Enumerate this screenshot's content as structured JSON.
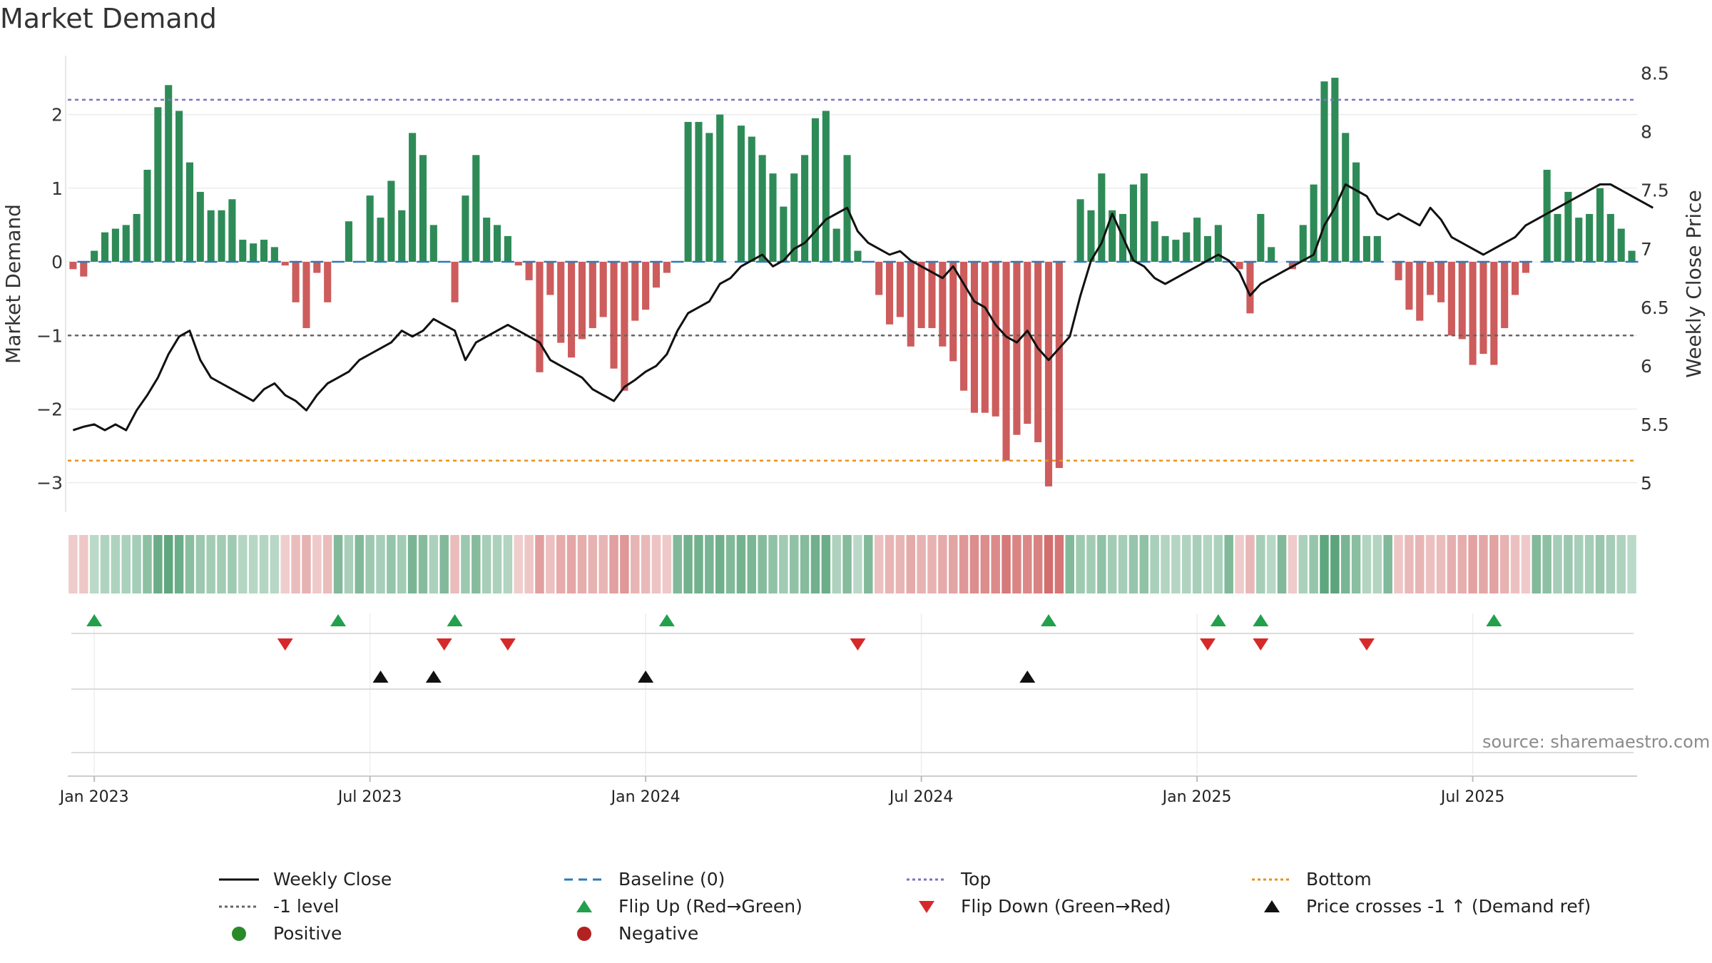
{
  "title": "Market Demand",
  "source": "source: sharemaestro.com",
  "chart_data": {
    "type": "bar+line",
    "title": "Market Demand",
    "ylabel_left": "Market Demand",
    "ylabel_right": "Weekly Close Price",
    "ylim_left": [
      -3.4,
      2.8
    ],
    "ylim_right": [
      4.75,
      8.65
    ],
    "yticks_left": [
      -3,
      -2,
      -1,
      0,
      1,
      2
    ],
    "ytick_labels_left": [
      "−3",
      "−2",
      "−1",
      "0",
      "1",
      "2"
    ],
    "yticks_right": [
      5,
      5.5,
      6,
      6.5,
      7,
      7.5,
      8,
      8.5
    ],
    "ytick_labels_right": [
      "5",
      "5.5",
      "6",
      "6.5",
      "7",
      "7.5",
      "8",
      "8.5"
    ],
    "xtick_labels": [
      "Jan 2023",
      "Jul 2023",
      "Jan 2024",
      "Jul 2024",
      "Jan 2025",
      "Jul 2025"
    ],
    "xtick_weeks": [
      2,
      28,
      54,
      80,
      106,
      132
    ],
    "levels": {
      "top": 2.2,
      "minus_one": -1,
      "bottom": -2.7,
      "baseline": 0
    },
    "colors": {
      "positive": "#2e8b57",
      "negative": "#cd5c5c",
      "close": "#111111",
      "top": "#7b72c2",
      "minus_one": "#666666",
      "bottom": "#e8921c",
      "baseline": "#2b7bba",
      "flip_up": "#22a04b",
      "flip_down": "#d62a2a",
      "cross": "#111111",
      "pos_dot": "#2a8a2a",
      "neg_dot": "#b22222"
    },
    "demand": [
      -0.1,
      -0.2,
      0.15,
      0.4,
      0.45,
      0.5,
      0.65,
      1.25,
      2.1,
      2.4,
      2.05,
      1.35,
      0.95,
      0.7,
      0.7,
      0.85,
      0.3,
      0.25,
      0.3,
      0.2,
      -0.05,
      -0.55,
      -0.9,
      -0.15,
      -0.55,
      0,
      0.55,
      0,
      0.9,
      0.6,
      1.1,
      0.7,
      1.75,
      1.45,
      0.5,
      0,
      -0.55,
      0.9,
      1.45,
      0.6,
      0.5,
      0.35,
      -0.05,
      -0.25,
      -1.5,
      -0.45,
      -1.1,
      -1.3,
      -1.05,
      -0.9,
      -0.75,
      -1.45,
      -1.75,
      -0.8,
      -0.65,
      -0.35,
      -0.15,
      0,
      1.9,
      1.9,
      1.75,
      2.0,
      0,
      1.85,
      1.7,
      1.45,
      1.2,
      0.75,
      1.2,
      1.45,
      1.95,
      2.05,
      0.45,
      1.45,
      0.15,
      0,
      -0.45,
      -0.85,
      -0.75,
      -1.15,
      -0.9,
      -0.9,
      -1.15,
      -1.35,
      -1.75,
      -2.05,
      -2.05,
      -2.1,
      -2.7,
      -2.35,
      -2.2,
      -2.45,
      -3.05,
      -2.8,
      0,
      0.85,
      0.7,
      1.2,
      0.7,
      0.65,
      1.05,
      1.2,
      0.55,
      0.35,
      0.3,
      0.4,
      0.6,
      0.35,
      0.5,
      0,
      -0.1,
      -0.7,
      0.65,
      0.2,
      0,
      -0.1,
      0.5,
      1.05,
      2.45,
      2.5,
      1.75,
      1.35,
      0.35,
      0.35,
      0,
      -0.25,
      -0.65,
      -0.8,
      -0.45,
      -0.55,
      -1.0,
      -1.05,
      -1.4,
      -1.25,
      -1.4,
      -0.9,
      -0.45,
      -0.15,
      0,
      1.25,
      0.65,
      0.95,
      0.6,
      0.65,
      1.0,
      0.65,
      0.45,
      0.15
    ],
    "close": [
      5.45,
      5.48,
      5.5,
      5.45,
      5.5,
      5.45,
      5.62,
      5.75,
      5.9,
      6.1,
      6.25,
      6.3,
      6.05,
      5.9,
      5.85,
      5.8,
      5.75,
      5.7,
      5.8,
      5.85,
      5.75,
      5.7,
      5.62,
      5.75,
      5.85,
      5.9,
      5.95,
      6.05,
      6.1,
      6.15,
      6.2,
      6.3,
      6.25,
      6.3,
      6.4,
      6.35,
      6.3,
      6.05,
      6.2,
      6.25,
      6.3,
      6.35,
      6.3,
      6.25,
      6.2,
      6.05,
      6.0,
      5.95,
      5.9,
      5.8,
      5.75,
      5.7,
      5.82,
      5.88,
      5.95,
      6.0,
      6.1,
      6.3,
      6.45,
      6.5,
      6.55,
      6.7,
      6.75,
      6.85,
      6.9,
      6.95,
      6.85,
      6.9,
      7.0,
      7.05,
      7.15,
      7.25,
      7.3,
      7.35,
      7.15,
      7.05,
      7.0,
      6.95,
      6.98,
      6.9,
      6.85,
      6.8,
      6.75,
      6.85,
      6.7,
      6.55,
      6.5,
      6.35,
      6.25,
      6.2,
      6.3,
      6.15,
      6.05,
      6.15,
      6.25,
      6.6,
      6.9,
      7.05,
      7.3,
      7.1,
      6.9,
      6.85,
      6.75,
      6.7,
      6.75,
      6.8,
      6.85,
      6.9,
      6.95,
      6.9,
      6.8,
      6.6,
      6.7,
      6.75,
      6.8,
      6.85,
      6.9,
      6.95,
      7.2,
      7.35,
      7.55,
      7.5,
      7.45,
      7.3,
      7.25,
      7.3,
      7.25,
      7.2,
      7.35,
      7.25,
      7.1,
      7.05,
      7.0,
      6.95,
      7.0,
      7.05,
      7.1,
      7.2,
      7.25,
      7.3,
      7.35,
      7.4,
      7.45,
      7.5,
      7.55,
      7.55,
      7.5,
      7.45,
      7.4,
      7.35
    ],
    "flip_up_weeks": [
      2,
      25,
      36,
      56,
      92,
      108,
      112,
      134
    ],
    "flip_down_weeks": [
      20,
      35,
      41,
      74,
      107,
      112,
      122
    ],
    "cross_up_weeks": [
      29,
      34,
      54,
      90
    ]
  },
  "legend": [
    {
      "label": "Weekly Close",
      "symbol": "line",
      "color": "#111111"
    },
    {
      "label": "Baseline (0)",
      "symbol": "dash",
      "color": "#2b7bba"
    },
    {
      "label": "Top",
      "symbol": "dot",
      "color": "#7b72c2"
    },
    {
      "label": "Bottom",
      "symbol": "dot",
      "color": "#e8921c"
    },
    {
      "label": "-1 level",
      "symbol": "dot",
      "color": "#666666"
    },
    {
      "label": "Flip Up (Red→Green)",
      "symbol": "triangle-up",
      "color": "#22a04b"
    },
    {
      "label": "Flip Down (Green→Red)",
      "symbol": "triangle-down",
      "color": "#d62a2a"
    },
    {
      "label": "Price crosses -1 ↑ (Demand ref)",
      "symbol": "triangle-up",
      "color": "#111111"
    },
    {
      "label": "Positive",
      "symbol": "circle",
      "color": "#2a8a2a"
    },
    {
      "label": "Negative",
      "symbol": "circle",
      "color": "#b22222"
    }
  ]
}
